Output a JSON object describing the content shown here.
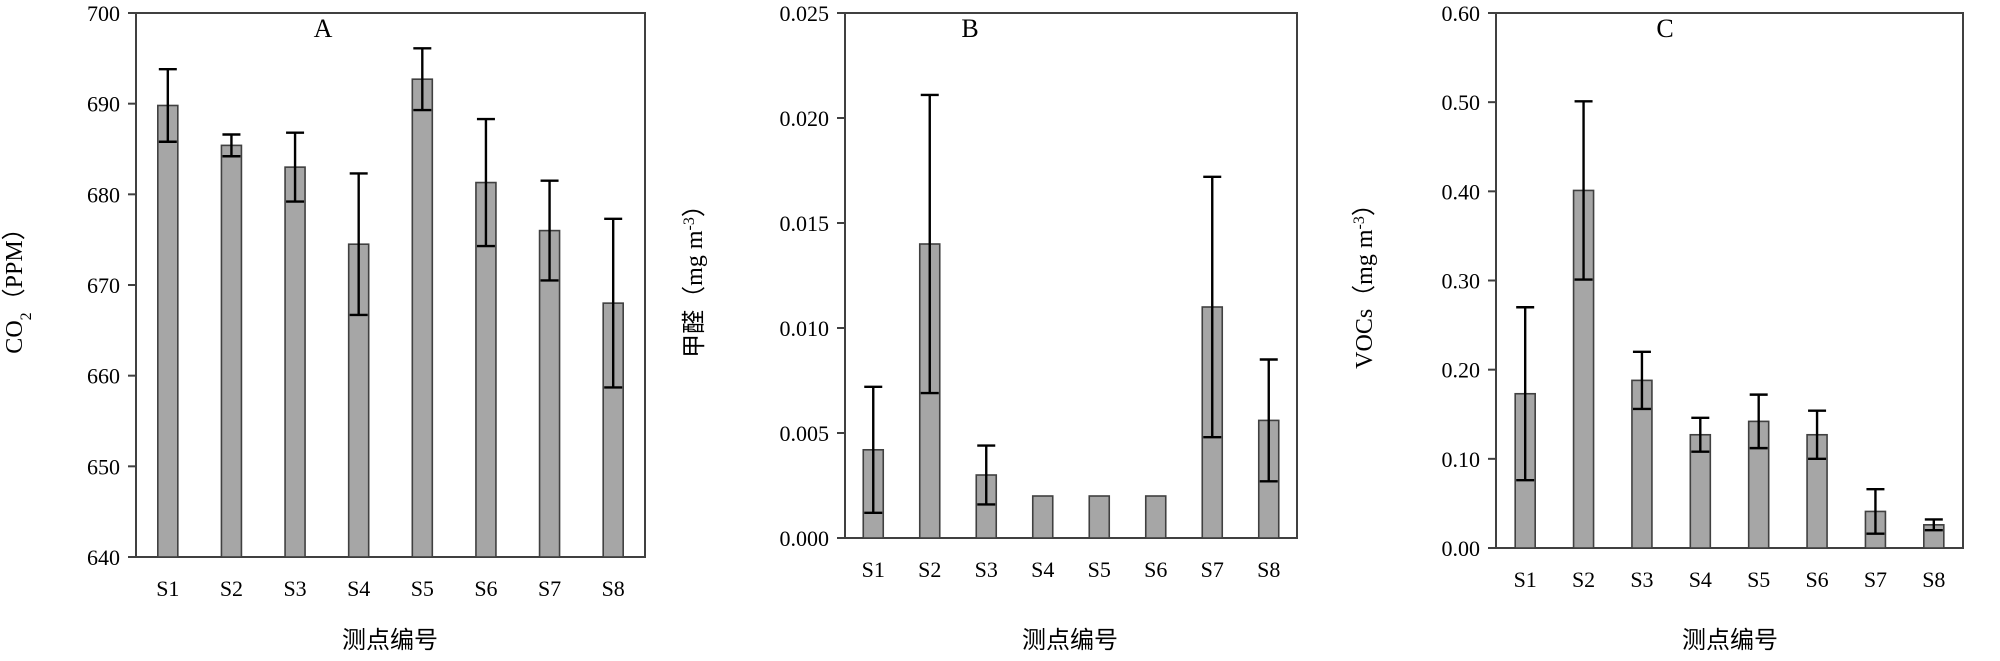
{
  "chart_data": [
    {
      "type": "bar",
      "panel_label": "A",
      "categories": [
        "S1",
        "S2",
        "S3",
        "S4",
        "S5",
        "S6",
        "S7",
        "S8"
      ],
      "values": [
        689.8,
        685.4,
        683.0,
        674.5,
        692.7,
        681.3,
        676.0,
        668.0
      ],
      "error": [
        4.0,
        1.2,
        3.8,
        7.8,
        3.4,
        7.0,
        5.5,
        9.3
      ],
      "xlabel": "测点编号",
      "ylabel_main": "CO",
      "ylabel_sub": "2",
      "ylabel_unit": "（PPM）",
      "ylim": [
        640,
        700
      ],
      "yticks": [
        640,
        650,
        660,
        670,
        680,
        690,
        700
      ],
      "yticklabels": [
        "640",
        "650",
        "660",
        "670",
        "680",
        "690",
        "700"
      ]
    },
    {
      "type": "bar",
      "panel_label": "B",
      "categories": [
        "S1",
        "S2",
        "S3",
        "S4",
        "S5",
        "S6",
        "S7",
        "S8"
      ],
      "values": [
        0.0042,
        0.014,
        0.003,
        0.002,
        0.002,
        0.002,
        0.011,
        0.0056
      ],
      "error": [
        0.003,
        0.0071,
        0.0014,
        0,
        0,
        0,
        0.0062,
        0.0029
      ],
      "xlabel": "测点编号",
      "ylabel_main": "甲醛（mg m",
      "ylabel_sup": "-3",
      "ylabel_end": "）",
      "ylim": [
        0,
        0.025
      ],
      "yticks": [
        0,
        0.005,
        0.01,
        0.015,
        0.02,
        0.025
      ],
      "yticklabels": [
        "0.000",
        "0.005",
        "0.010",
        "0.015",
        "0.020",
        "0.025"
      ]
    },
    {
      "type": "bar",
      "panel_label": "C",
      "categories": [
        "S1",
        "S2",
        "S3",
        "S4",
        "S5",
        "S6",
        "S7",
        "S8"
      ],
      "values": [
        0.173,
        0.401,
        0.188,
        0.127,
        0.142,
        0.127,
        0.041,
        0.026
      ],
      "error": [
        0.097,
        0.1,
        0.032,
        0.019,
        0.03,
        0.027,
        0.025,
        0.006
      ],
      "xlabel": "测点编号",
      "ylabel_main": "VOCs（mg m",
      "ylabel_sup": "-3",
      "ylabel_end": "）",
      "ylim": [
        0,
        0.6
      ],
      "yticks": [
        0,
        0.1,
        0.2,
        0.3,
        0.4,
        0.5,
        0.6
      ],
      "yticklabels": [
        "0.00",
        "0.10",
        "0.20",
        "0.30",
        "0.40",
        "0.50",
        "0.60"
      ]
    }
  ]
}
